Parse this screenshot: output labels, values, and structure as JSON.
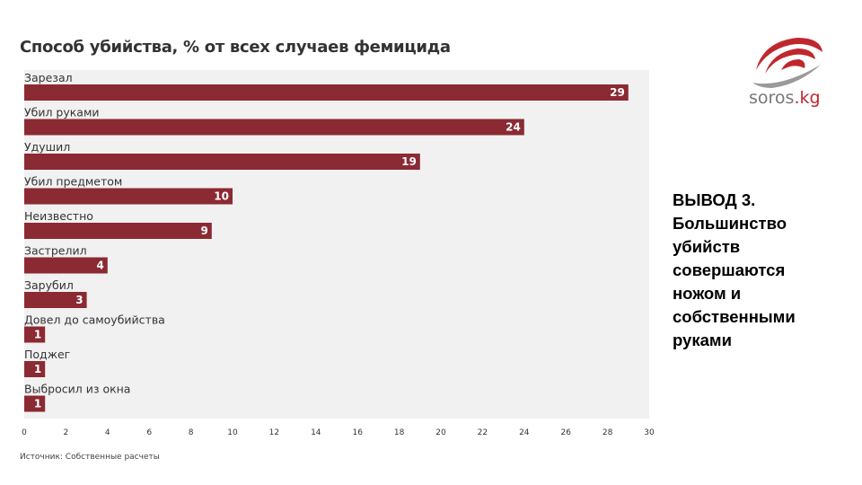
{
  "chart_data": {
    "type": "bar",
    "orientation": "horizontal",
    "title": "Способ убийства, % от всех случаев фемицида",
    "categories": [
      "Зарезал",
      "Убил руками",
      "Удушил",
      "Убил предметом",
      "Неизвестно",
      "Застрелил",
      "Зарубил",
      "Довел до самоубийства",
      "Поджег",
      "Выбросил из окна"
    ],
    "values": [
      29,
      24,
      19,
      10,
      9,
      4,
      3,
      1,
      1,
      1
    ],
    "xlim": [
      0,
      30
    ],
    "xticks": [
      "0",
      "2",
      "4",
      "6",
      "8",
      "10",
      "12",
      "14",
      "16",
      "18",
      "20",
      "22",
      "24",
      "26",
      "28",
      "30"
    ],
    "xlabel": "",
    "ylabel": "",
    "grid": false,
    "bar_color": "#8b2a33",
    "background_color": "#f2f1f1",
    "value_label_color": "#ffffff"
  },
  "source": "Источник: Собственные расчеты",
  "logo": {
    "text_main": "soros",
    "text_suffix": ".kg",
    "accent_color": "#c0272d",
    "gray_color": "#888888"
  },
  "conclusion": {
    "lines": [
      "ВЫВОД 3.",
      "Большинство",
      "убийств",
      "совершаются",
      "ножом и",
      "собственными",
      "руками"
    ]
  }
}
